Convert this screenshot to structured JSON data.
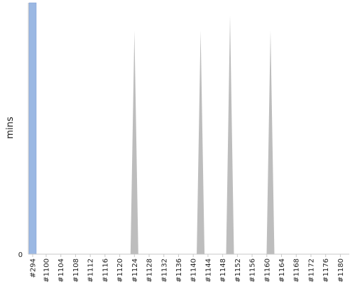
{
  "chart_data": {
    "type": "area",
    "title": "",
    "xlabel": "",
    "ylabel": "mins",
    "ylim": [
      0,
      100
    ],
    "y_ticks": [
      {
        "value": 0,
        "label": "0"
      }
    ],
    "grid": false,
    "legend": "none",
    "categories": [
      "#294",
      "#1100",
      "#1104",
      "#1108",
      "#1112",
      "#1116",
      "#1120",
      "#1124",
      "#1128",
      "#1132",
      "#1136",
      "#1140",
      "#1144",
      "#1148",
      "#1152",
      "#1156",
      "#1160",
      "#1164",
      "#1168",
      "#1172",
      "#1176",
      "#1180"
    ],
    "x_tick_labels": [
      "#294",
      "#1100",
      "#1104",
      "#1108",
      "#1112",
      "#1116",
      "#1120",
      "#1124",
      "#1128",
      "#1132",
      "#1136",
      "#1140",
      "#1144",
      "#1148",
      "#1152",
      "#1156",
      "#1160",
      "#1164",
      "#1168",
      "#1172",
      "#1176",
      "#1180"
    ],
    "bar": {
      "category": "#294",
      "value": 100,
      "color": "#9bb8e3"
    },
    "spikes": [
      {
        "at": "#1124",
        "value": 89
      },
      {
        "at": "#1142",
        "value": 89
      },
      {
        "at": "#1150",
        "value": 95
      },
      {
        "at": "#1161",
        "value": 89
      }
    ],
    "colors": {
      "bar": "#9bb8e3",
      "bar_edge": "#7f9fd6",
      "spike": "#bdbdbd",
      "axis": "#c8c8c8",
      "text": "#222222"
    }
  }
}
